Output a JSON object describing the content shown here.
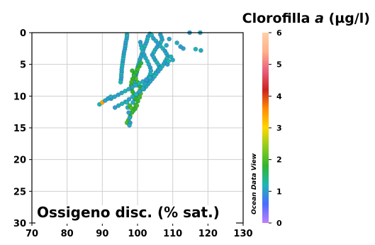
{
  "chart_data": {
    "type": "scatter",
    "title": "Clorofilla",
    "title_italic": "a",
    "title_unit": "(µg/l)",
    "xlabel": "Ossigeno disc. (% sat.)",
    "xlim": [
      70,
      130
    ],
    "ylim": [
      0,
      30
    ],
    "y_inverted": true,
    "x_ticks": [
      "70",
      "80",
      "90",
      "100",
      "110",
      "120",
      "130"
    ],
    "y_ticks": [
      "0",
      "5",
      "10",
      "15",
      "20",
      "25",
      "30"
    ],
    "grid": true,
    "colorbar": {
      "ticks": [
        "0",
        "1",
        "2",
        "3",
        "4",
        "5",
        "6"
      ],
      "range": [
        0,
        6
      ],
      "stops": [
        "#bf7fff",
        "#4b6bff",
        "#1fb5b5",
        "#2fb52f",
        "#8fcc1f",
        "#ffd700",
        "#ff8c00",
        "#cc2222",
        "#e8607a",
        "#ffb08a",
        "#ffd0a8"
      ],
      "credit": "Ocean Data View"
    },
    "series": [
      {
        "points": [
          [
            97.0,
            0.3,
            1.1
          ],
          [
            97.0,
            0.6,
            1.2
          ],
          [
            96.9,
            1.0,
            1.0
          ],
          [
            96.7,
            1.4,
            1.1
          ],
          [
            96.6,
            1.8,
            1.0
          ],
          [
            96.5,
            2.2,
            1.1
          ],
          [
            96.4,
            2.6,
            1.0
          ],
          [
            96.2,
            3.0,
            1.1
          ],
          [
            96.1,
            3.4,
            1.0
          ],
          [
            96.0,
            3.8,
            1.1
          ],
          [
            95.9,
            4.2,
            1.2
          ],
          [
            95.8,
            4.6,
            1.0
          ],
          [
            95.7,
            5.0,
            1.1
          ],
          [
            95.6,
            5.4,
            1.2
          ],
          [
            95.5,
            5.8,
            1.1
          ],
          [
            95.5,
            6.2,
            1.0
          ],
          [
            95.4,
            6.6,
            1.2
          ],
          [
            95.4,
            7.0,
            1.1
          ],
          [
            95.3,
            7.4,
            1.0
          ],
          [
            95.2,
            7.8,
            1.2
          ]
        ]
      },
      {
        "points": [
          [
            103.5,
            0.2,
            1.1
          ],
          [
            103.0,
            0.6,
            1.0
          ],
          [
            102.8,
            1.0,
            1.2
          ],
          [
            102.6,
            1.4,
            1.1
          ],
          [
            102.3,
            1.8,
            1.0
          ],
          [
            102.0,
            2.2,
            1.2
          ],
          [
            101.7,
            2.6,
            1.1
          ],
          [
            101.5,
            3.0,
            1.0
          ],
          [
            101.2,
            3.4,
            1.2
          ],
          [
            101.0,
            3.8,
            1.1
          ],
          [
            100.7,
            4.2,
            1.0
          ],
          [
            100.5,
            4.6,
            1.2
          ],
          [
            100.3,
            5.0,
            1.1
          ],
          [
            100.1,
            5.4,
            1.0
          ],
          [
            99.9,
            5.8,
            1.2
          ],
          [
            99.8,
            6.2,
            1.1
          ],
          [
            99.6,
            6.6,
            1.0
          ],
          [
            99.4,
            7.0,
            1.1
          ],
          [
            99.2,
            7.4,
            1.2
          ],
          [
            99.0,
            7.8,
            1.1
          ]
        ]
      },
      {
        "points": [
          [
            106.5,
            0.3,
            1.0
          ],
          [
            106.8,
            0.7,
            1.1
          ],
          [
            107.0,
            1.1,
            1.0
          ],
          [
            106.6,
            1.5,
            1.2
          ],
          [
            106.0,
            1.9,
            1.1
          ],
          [
            105.5,
            2.3,
            1.0
          ],
          [
            105.0,
            2.7,
            1.1
          ],
          [
            104.6,
            3.1,
            1.2
          ],
          [
            104.2,
            3.5,
            1.0
          ],
          [
            104.6,
            3.9,
            1.1
          ],
          [
            105.0,
            4.3,
            1.0
          ],
          [
            105.5,
            4.7,
            1.2
          ],
          [
            106.0,
            5.1,
            1.1
          ],
          [
            106.2,
            5.5,
            1.0
          ],
          [
            105.8,
            5.9,
            1.2
          ],
          [
            105.2,
            6.3,
            1.1
          ],
          [
            104.6,
            6.7,
            1.0
          ],
          [
            104.0,
            7.1,
            1.1
          ]
        ]
      },
      {
        "points": [
          [
            104.0,
            0.4,
            1.2
          ],
          [
            104.5,
            0.9,
            1.0
          ],
          [
            105.2,
            1.3,
            1.1
          ],
          [
            105.8,
            1.7,
            1.0
          ],
          [
            106.5,
            2.1,
            1.1
          ],
          [
            107.2,
            2.5,
            1.2
          ],
          [
            107.8,
            2.9,
            1.0
          ],
          [
            108.2,
            3.3,
            1.1
          ],
          [
            108.6,
            3.7,
            1.0
          ],
          [
            108.3,
            4.1,
            1.2
          ],
          [
            107.9,
            4.5,
            1.1
          ],
          [
            107.5,
            4.9,
            1.0
          ],
          [
            107.0,
            5.3,
            1.2
          ],
          [
            106.5,
            5.7,
            1.1
          ],
          [
            105.9,
            6.1,
            1.0
          ],
          [
            105.3,
            6.5,
            1.1
          ],
          [
            104.8,
            6.9,
            1.2
          ],
          [
            104.2,
            7.3,
            1.0
          ],
          [
            103.6,
            7.7,
            1.1
          ],
          [
            103.0,
            8.1,
            1.0
          ],
          [
            102.4,
            8.5,
            1.1
          ],
          [
            101.8,
            8.9,
            1.2
          ]
        ]
      },
      {
        "points": [
          [
            100.8,
            1.5,
            1.0
          ],
          [
            101.0,
            2.0,
            1.1
          ],
          [
            101.2,
            2.5,
            1.2
          ],
          [
            101.5,
            3.0,
            1.1
          ],
          [
            101.9,
            3.5,
            1.0
          ],
          [
            102.3,
            4.0,
            1.1
          ],
          [
            102.8,
            4.5,
            1.2
          ],
          [
            103.2,
            5.0,
            1.1
          ],
          [
            103.6,
            5.5,
            1.0
          ],
          [
            103.8,
            6.0,
            1.1
          ],
          [
            103.6,
            6.5,
            1.2
          ],
          [
            103.2,
            7.0,
            1.1
          ],
          [
            102.7,
            7.5,
            1.0
          ],
          [
            102.1,
            8.0,
            1.1
          ],
          [
            101.5,
            8.5,
            1.2
          ],
          [
            100.9,
            9.0,
            1.1
          ],
          [
            100.3,
            9.5,
            1.0
          ],
          [
            99.7,
            10.0,
            1.1
          ],
          [
            99.2,
            10.5,
            1.2
          ],
          [
            98.7,
            11.0,
            1.1
          ]
        ]
      },
      {
        "points": [
          [
            98.5,
            6.0,
            1.8
          ],
          [
            99.0,
            6.6,
            1.9
          ],
          [
            99.5,
            7.2,
            2.0
          ],
          [
            100.0,
            7.8,
            1.9
          ],
          [
            100.5,
            8.4,
            1.8
          ],
          [
            100.8,
            9.0,
            1.9
          ],
          [
            100.9,
            9.6,
            2.0
          ],
          [
            100.6,
            10.2,
            1.9
          ],
          [
            100.1,
            10.8,
            1.8
          ],
          [
            99.5,
            11.4,
            1.9
          ],
          [
            98.9,
            12.0,
            2.0
          ],
          [
            98.4,
            12.6,
            1.9
          ],
          [
            97.9,
            13.2,
            1.8
          ],
          [
            97.4,
            13.8,
            1.9
          ],
          [
            97.0,
            14.2,
            2.0
          ]
        ]
      },
      {
        "points": [
          [
            101.0,
            4.8,
            1.7
          ],
          [
            100.5,
            5.3,
            1.8
          ],
          [
            100.0,
            5.8,
            1.9
          ],
          [
            99.5,
            6.3,
            1.8
          ],
          [
            99.0,
            6.8,
            1.7
          ],
          [
            98.6,
            7.3,
            1.8
          ],
          [
            98.3,
            7.8,
            1.9
          ],
          [
            98.2,
            8.3,
            1.8
          ],
          [
            98.3,
            8.8,
            1.7
          ],
          [
            98.6,
            9.3,
            1.8
          ],
          [
            99.0,
            9.8,
            1.9
          ],
          [
            99.3,
            10.3,
            1.8
          ]
        ]
      },
      {
        "points": [
          [
            101.5,
            8.8,
            1.1
          ],
          [
            100.6,
            9.3,
            1.0
          ],
          [
            99.6,
            9.7,
            1.2
          ],
          [
            98.6,
            10.1,
            1.1
          ],
          [
            97.6,
            10.5,
            1.0
          ],
          [
            96.6,
            10.9,
            1.1
          ],
          [
            95.6,
            11.2,
            1.2
          ],
          [
            94.6,
            11.5,
            1.1
          ],
          [
            93.6,
            11.8,
            1.0
          ]
        ]
      },
      {
        "points": [
          [
            92.5,
            10.4,
            1.0
          ],
          [
            93.5,
            10.1,
            1.1
          ],
          [
            94.5,
            9.8,
            1.0
          ],
          [
            95.5,
            9.5,
            1.1
          ],
          [
            96.5,
            9.2,
            1.2
          ],
          [
            97.5,
            8.9,
            1.1
          ],
          [
            98.5,
            8.6,
            1.0
          ],
          [
            99.5,
            8.3,
            1.1
          ],
          [
            100.5,
            8.0,
            1.2
          ],
          [
            101.5,
            7.7,
            1.1
          ],
          [
            102.5,
            7.4,
            1.0
          ],
          [
            103.5,
            7.1,
            1.1
          ]
        ]
      },
      {
        "points": [
          [
            97.0,
            11.0,
            1.2
          ],
          [
            97.2,
            11.8,
            1.1
          ],
          [
            97.5,
            12.6,
            1.0
          ],
          [
            97.8,
            13.4,
            1.1
          ],
          [
            97.9,
            14.2,
            1.0
          ],
          [
            97.7,
            14.6,
            1.1
          ]
        ]
      },
      {
        "points": [
          [
            89.2,
            11.3,
            1.2
          ],
          [
            90.0,
            11.0,
            3.4
          ],
          [
            90.8,
            10.7,
            1.1
          ],
          [
            91.6,
            10.4,
            1.0
          ],
          [
            92.4,
            10.1,
            1.1
          ]
        ]
      },
      {
        "points": [
          [
            111.2,
            1.6,
            1.1
          ],
          [
            109.5,
            3.8,
            1.2
          ],
          [
            108.5,
            5.0,
            1.0
          ],
          [
            110.0,
            4.3,
            1.1
          ],
          [
            114.8,
            0.0,
            1.0
          ],
          [
            117.8,
            0.0,
            1.1
          ],
          [
            113.0,
            2.5,
            1.0
          ],
          [
            116.5,
            2.6,
            1.2
          ],
          [
            118.0,
            2.8,
            1.1
          ],
          [
            109.0,
            1.0,
            1.0
          ],
          [
            108.2,
            2.0,
            1.1
          ],
          [
            108.8,
            4.5,
            1.2
          ],
          [
            112.2,
            2.2,
            1.0
          ]
        ]
      },
      {
        "points": [
          [
            97.8,
            11.5,
            1.9
          ],
          [
            98.2,
            11.9,
            2.0
          ],
          [
            98.8,
            12.3,
            1.9
          ],
          [
            99.3,
            12.0,
            1.8
          ],
          [
            99.8,
            11.5,
            1.9
          ]
        ]
      }
    ]
  }
}
